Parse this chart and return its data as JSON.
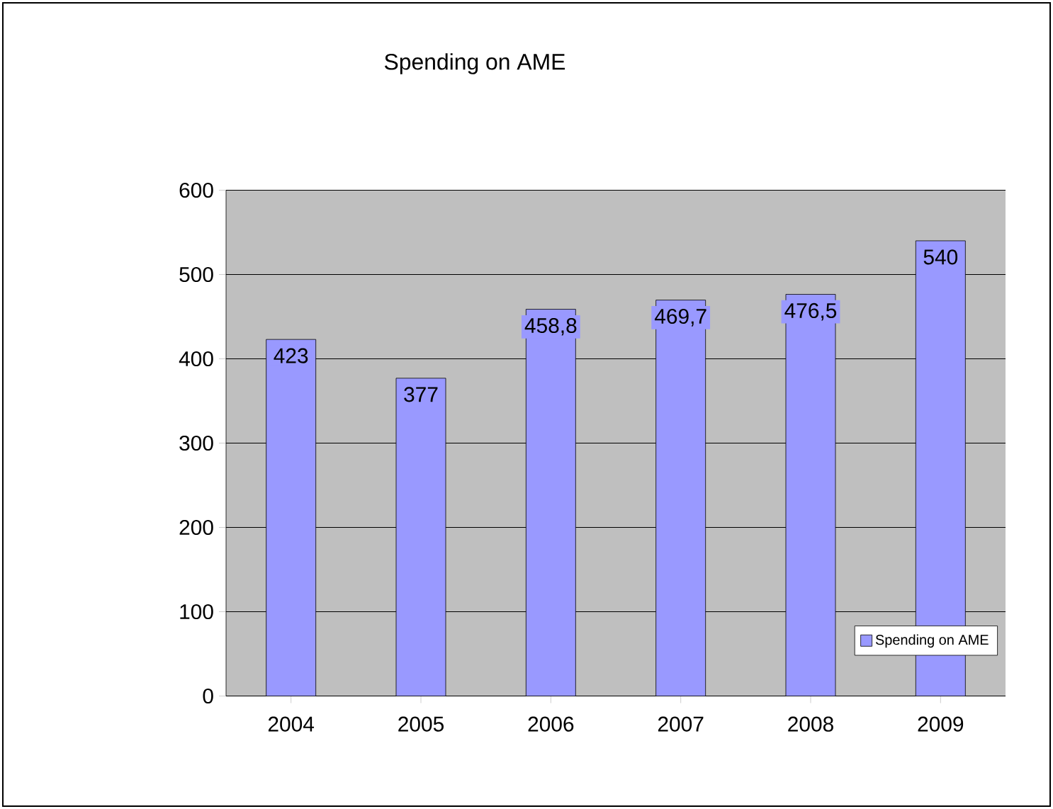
{
  "chart_data": {
    "type": "bar",
    "title": "Spending on AME",
    "categories": [
      "2004",
      "2005",
      "2006",
      "2007",
      "2008",
      "2009"
    ],
    "series": [
      {
        "name": "Spending on AME",
        "color": "#9999ff",
        "values": [
          423,
          377,
          458.8,
          469.7,
          476.5,
          540
        ],
        "value_labels": [
          "423",
          "377",
          "458,8",
          "469,7",
          "476,5",
          "540"
        ]
      }
    ],
    "ylim": [
      0,
      600
    ],
    "yticks": [
      0,
      100,
      200,
      300,
      400,
      500,
      600
    ],
    "grid": "y",
    "legend": "bottom right"
  }
}
